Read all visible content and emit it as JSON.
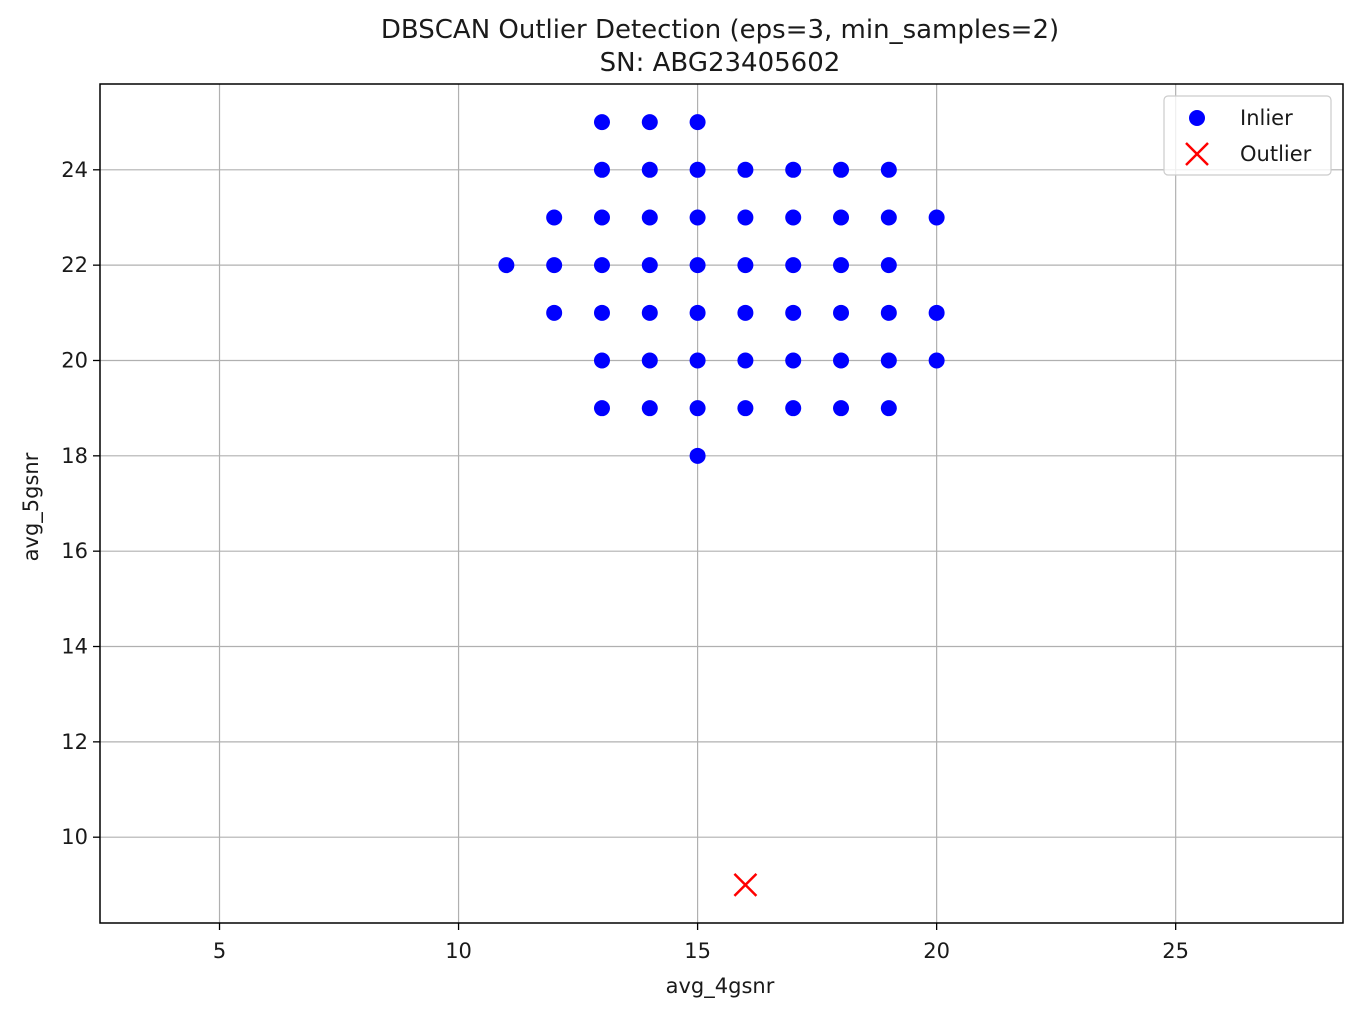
{
  "chart_data": {
    "type": "scatter",
    "title": "DBSCAN Outlier Detection (eps=3, min_samples=2)",
    "subtitle": "SN: ABG23405602",
    "xlabel": "avg_4gsnr",
    "ylabel": "avg_5gsnr",
    "xlim": [
      2.5,
      28.5
    ],
    "ylim": [
      8.2,
      25.8
    ],
    "xticks": [
      5,
      10,
      15,
      20,
      25
    ],
    "yticks": [
      10,
      12,
      14,
      16,
      18,
      20,
      22,
      24
    ],
    "grid": true,
    "legend_position": "upper right",
    "series": [
      {
        "name": "Inlier",
        "marker": "circle",
        "color": "#0000ff",
        "points": [
          [
            13,
            25
          ],
          [
            14,
            25
          ],
          [
            15,
            25
          ],
          [
            13,
            24
          ],
          [
            14,
            24
          ],
          [
            15,
            24
          ],
          [
            16,
            24
          ],
          [
            17,
            24
          ],
          [
            18,
            24
          ],
          [
            19,
            24
          ],
          [
            12,
            23
          ],
          [
            13,
            23
          ],
          [
            14,
            23
          ],
          [
            15,
            23
          ],
          [
            16,
            23
          ],
          [
            17,
            23
          ],
          [
            18,
            23
          ],
          [
            19,
            23
          ],
          [
            20,
            23
          ],
          [
            11,
            22
          ],
          [
            12,
            22
          ],
          [
            13,
            22
          ],
          [
            14,
            22
          ],
          [
            15,
            22
          ],
          [
            16,
            22
          ],
          [
            17,
            22
          ],
          [
            18,
            22
          ],
          [
            19,
            22
          ],
          [
            12,
            21
          ],
          [
            13,
            21
          ],
          [
            14,
            21
          ],
          [
            15,
            21
          ],
          [
            16,
            21
          ],
          [
            17,
            21
          ],
          [
            18,
            21
          ],
          [
            19,
            21
          ],
          [
            20,
            21
          ],
          [
            13,
            20
          ],
          [
            14,
            20
          ],
          [
            15,
            20
          ],
          [
            16,
            20
          ],
          [
            17,
            20
          ],
          [
            18,
            20
          ],
          [
            19,
            20
          ],
          [
            20,
            20
          ],
          [
            13,
            19
          ],
          [
            14,
            19
          ],
          [
            15,
            19
          ],
          [
            16,
            19
          ],
          [
            17,
            19
          ],
          [
            18,
            19
          ],
          [
            19,
            19
          ],
          [
            15,
            18
          ]
        ]
      },
      {
        "name": "Outlier",
        "marker": "x",
        "color": "#ff0000",
        "points": [
          [
            16,
            9
          ]
        ]
      }
    ]
  }
}
